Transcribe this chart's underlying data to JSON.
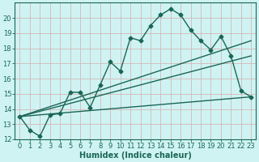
{
  "xlabel": "Humidex (Indice chaleur)",
  "bg_color": "#cff3f3",
  "grid_color_major": "#d4b8b8",
  "grid_color_minor": "#d4b8b8",
  "line_color": "#1a6655",
  "xlim": [
    -0.5,
    23.5
  ],
  "ylim": [
    12,
    21
  ],
  "yticks": [
    12,
    13,
    14,
    15,
    16,
    17,
    18,
    19,
    20
  ],
  "xticks": [
    0,
    1,
    2,
    3,
    4,
    5,
    6,
    7,
    8,
    9,
    10,
    11,
    12,
    13,
    14,
    15,
    16,
    17,
    18,
    19,
    20,
    21,
    22,
    23
  ],
  "line1_x": [
    0,
    1,
    2,
    3,
    4,
    5,
    6,
    7,
    8,
    9,
    10,
    11,
    12,
    13,
    14,
    15,
    16,
    17,
    18,
    19,
    20,
    21,
    22,
    23
  ],
  "line1_y": [
    13.5,
    12.6,
    12.2,
    13.6,
    13.7,
    15.1,
    15.1,
    14.1,
    15.6,
    17.1,
    16.5,
    18.7,
    18.5,
    19.5,
    20.2,
    20.6,
    20.2,
    19.2,
    18.5,
    17.9,
    18.8,
    17.5,
    15.2,
    14.8
  ],
  "line2_x": [
    0,
    23
  ],
  "line2_y": [
    13.5,
    14.8
  ],
  "line3_x": [
    0,
    23
  ],
  "line3_y": [
    13.5,
    17.5
  ],
  "line4_x": [
    0,
    23
  ],
  "line4_y": [
    13.5,
    18.5
  ],
  "marker": "D",
  "markersize": 2.5,
  "linewidth": 1.0,
  "xlabel_fontsize": 7,
  "tick_fontsize": 6
}
